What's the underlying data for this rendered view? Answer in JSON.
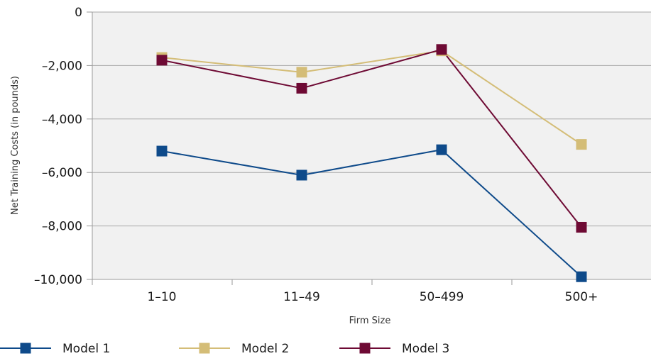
{
  "chart_data": {
    "type": "line",
    "xlabel": "Firm Size",
    "ylabel": "Net Training Costs (in pounds)",
    "categories": [
      "1–10",
      "11–49",
      "50–499",
      "500+"
    ],
    "ylim": [
      -10000,
      0
    ],
    "yticks": [
      0,
      -2000,
      -4000,
      -6000,
      -8000,
      -10000
    ],
    "ytick_labels": [
      "0",
      "–2,000",
      "–4,000",
      "–6,000",
      "–8,000",
      "–10,000"
    ],
    "grid": "horizontal",
    "legend_position": "bottom",
    "plot_background": "#f1f1f1",
    "series": [
      {
        "name": "Model 1",
        "color": "#0e4a8a",
        "values": [
          -5200,
          -6100,
          -5150,
          -9900
        ]
      },
      {
        "name": "Model 2",
        "color": "#d4bd77",
        "values": [
          -1700,
          -2250,
          -1450,
          -4950
        ]
      },
      {
        "name": "Model 3",
        "color": "#6e0a34",
        "values": [
          -1800,
          -2850,
          -1400,
          -8050
        ]
      }
    ]
  }
}
